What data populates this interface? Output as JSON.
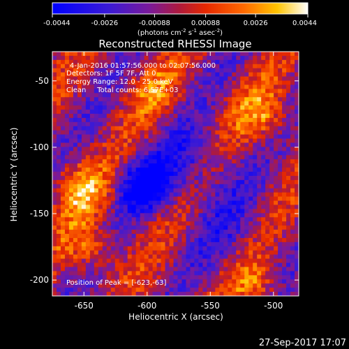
{
  "colorbar": {
    "ticks": [
      {
        "label": "-0.0044",
        "value": -0.0044
      },
      {
        "label": "-0.0026",
        "value": -0.0026
      },
      {
        "label": "-0.00088",
        "value": -0.00088
      },
      {
        "label": "0.00088",
        "value": 0.00088
      },
      {
        "label": "0.0026",
        "value": 0.0026
      },
      {
        "label": "0.0044",
        "value": 0.0044
      }
    ],
    "range": [
      -0.0044,
      0.0044
    ],
    "units_label": "(photons cm",
    "units_exp1": "-2",
    "units_mid": " s",
    "units_exp2": "-1",
    "units_end": " asec",
    "units_exp3": "-2",
    "units_close": ")"
  },
  "chart_data": {
    "type": "heatmap",
    "title": "Reconstructed RHESSI Image",
    "xlabel": "Heliocentric X (arcsec)",
    "ylabel": "Heliocentric Y (arcsec)",
    "xlim": [
      -675,
      -480
    ],
    "ylim": [
      -212,
      -28
    ],
    "xticks": [
      -650,
      -600,
      -550,
      -500
    ],
    "yticks": [
      -200,
      -150,
      -100,
      -50
    ],
    "color_scale": "blue-purple-red-yellow-white",
    "info_lines": [
      "4-Jan-2016 01:57:56.000 to 02:07:56.000",
      "Detectors: 1F 5F 7F, Att 0",
      "Energy Range: 12.0 - 25.0 keV",
      "Clean     Total counts: 6.57E+03"
    ],
    "peak_text": "Position of Peak = [-623,-63]"
  },
  "footer": {
    "timestamp": "27-Sep-2017 17:07"
  },
  "colors": {
    "background": "#000000",
    "foreground": "#ffffff"
  }
}
